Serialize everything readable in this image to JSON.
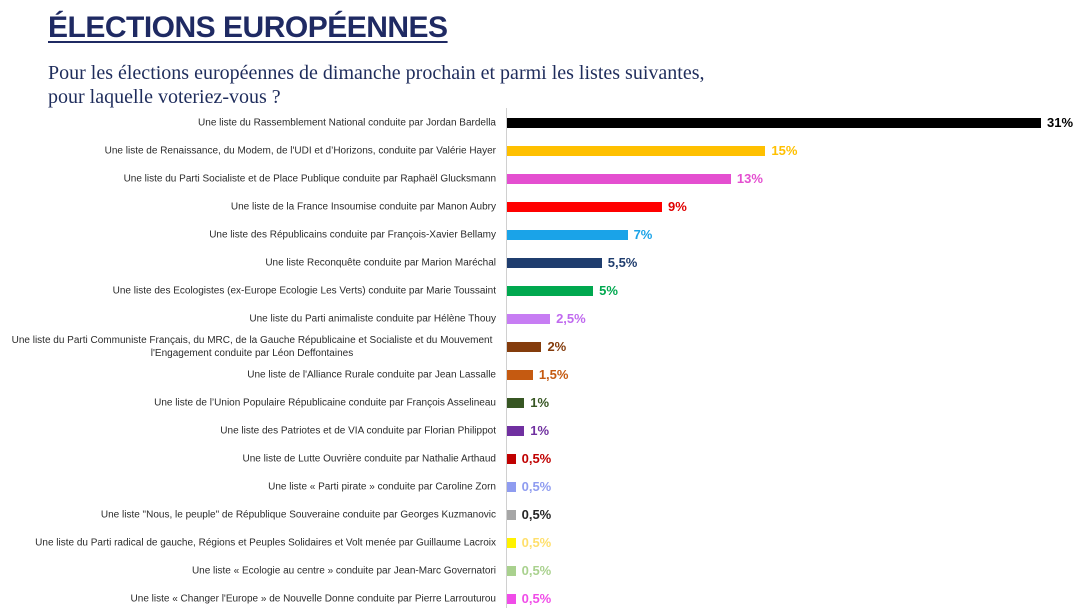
{
  "theme": {
    "title_color": "#1F2A63",
    "subtitle_color": "#1F2D5C",
    "axis_color": "#d0d0d0"
  },
  "chart_data": {
    "type": "bar",
    "orientation": "horizontal",
    "title": "ÉLECTIONS EUROPÉENNES",
    "subtitle": [
      "Pour les élections européennes de dimanche prochain et parmi les listes suivantes,",
      "pour laquelle voteriez-vous ?"
    ],
    "categories": [
      "Une liste du Rassemblement National conduite par Jordan Bardella",
      "Une liste de Renaissance, du Modem, de l'UDI et d’Horizons, conduite par Valérie Hayer",
      "Une liste du Parti Socialiste et de Place Publique conduite par Raphaël Glucksmann",
      "Une liste de la France Insoumise conduite par Manon Aubry",
      "Une liste des Républicains conduite par François-Xavier Bellamy",
      "Une liste Reconquête conduite par Marion Maréchal",
      "Une liste des Ecologistes (ex-Europe Ecologie Les Verts) conduite par Marie Toussaint",
      "Une liste du Parti animaliste conduite par Hélène Thouy",
      "Une liste du Parti Communiste Français, du MRC, de la Gauche Républicaine et Socialiste et du Mouvement l'Engagement conduite par Léon Deffontaines",
      "Une liste de l'Alliance Rurale conduite par Jean Lassalle",
      "Une liste de l’Union Populaire Républicaine conduite par François Asselineau",
      "Une liste des Patriotes et de VIA conduite par Florian Philippot",
      "Une liste de Lutte Ouvrière conduite par Nathalie Arthaud",
      "Une liste « Parti pirate » conduite par Caroline Zorn",
      "Une liste \"Nous, le peuple\" de République Souveraine conduite par Georges Kuzmanovic",
      "Une liste du Parti radical de gauche, Régions et Peuples Solidaires et Volt menée par Guillaume Lacroix",
      "Une liste « Ecologie au centre » conduite par Jean-Marc Governatori",
      "Une liste « Changer l'Europe » de Nouvelle Donne conduite par Pierre Larrouturou"
    ],
    "values": [
      31,
      15,
      13,
      9,
      7,
      5.5,
      5,
      2.5,
      2,
      1.5,
      1,
      1,
      0.5,
      0.5,
      0.5,
      0.5,
      0.5,
      0.5
    ],
    "value_labels": [
      "31%",
      "15%",
      "13%",
      "9%",
      "7%",
      "5,5%",
      "5%",
      "2,5%",
      "2%",
      "1,5%",
      "1%",
      "1%",
      "0,5%",
      "0,5%",
      "0,5%",
      "0,5%",
      "0,5%",
      "0,5%"
    ],
    "colors": [
      "#000000",
      "#FFC000",
      "#E44FD0",
      "#FF0000",
      "#1AA3E8",
      "#1F3D6E",
      "#00A84F",
      "#C77DF3",
      "#843C0C",
      "#C55A11",
      "#375623",
      "#7030A0",
      "#C00000",
      "#8F9CF0",
      "#A6A6A6",
      "#FFF200",
      "#A9D18E",
      "#F04CE8"
    ],
    "label_colors": [
      "#000000",
      "#FFC000",
      "#E44FD0",
      "#E00000",
      "#1AA3E8",
      "#1F3D6E",
      "#00A84F",
      "#C06AEF",
      "#843C0C",
      "#C55A11",
      "#375623",
      "#7030A0",
      "#C00000",
      "#8F9CF0",
      "#262626",
      "#FFDF6B",
      "#A9D18E",
      "#F04CE8"
    ],
    "xlim": [
      0,
      31
    ],
    "grid": false,
    "legend": "none"
  }
}
